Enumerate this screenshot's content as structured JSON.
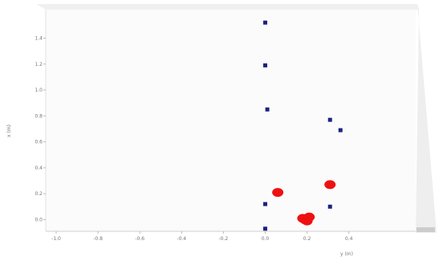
{
  "chart_data": {
    "type": "scatter",
    "title": "",
    "xlabel": "y (m)",
    "ylabel": "x (m)",
    "xlim": [
      -1.05,
      0.72
    ],
    "ylim": [
      -0.09,
      1.62
    ],
    "x_ticks": [
      "-1.0",
      "-0.8",
      "-0.6",
      "-0.4",
      "-0.2",
      "0.0",
      "0.2",
      "0.4"
    ],
    "y_ticks": [
      "0.0",
      "0.2",
      "0.4",
      "0.6",
      "0.8",
      "1.0",
      "1.2",
      "1.4"
    ],
    "grid": false,
    "series": [
      {
        "marker": "square",
        "color": "#1a237e",
        "points": [
          [
            0.0,
            1.52
          ],
          [
            0.0,
            1.19
          ],
          [
            0.01,
            0.85
          ],
          [
            0.31,
            0.77
          ],
          [
            0.36,
            0.69
          ],
          [
            0.0,
            0.12
          ],
          [
            0.31,
            0.1
          ],
          [
            0.0,
            -0.07
          ]
        ]
      },
      {
        "marker": "circle",
        "color": "#ee1111",
        "points": [
          [
            0.06,
            0.21
          ],
          [
            0.31,
            0.27
          ],
          [
            0.18,
            0.01
          ],
          [
            0.19,
            0.0
          ],
          [
            0.2,
            -0.01
          ],
          [
            0.21,
            0.02
          ]
        ]
      }
    ]
  }
}
